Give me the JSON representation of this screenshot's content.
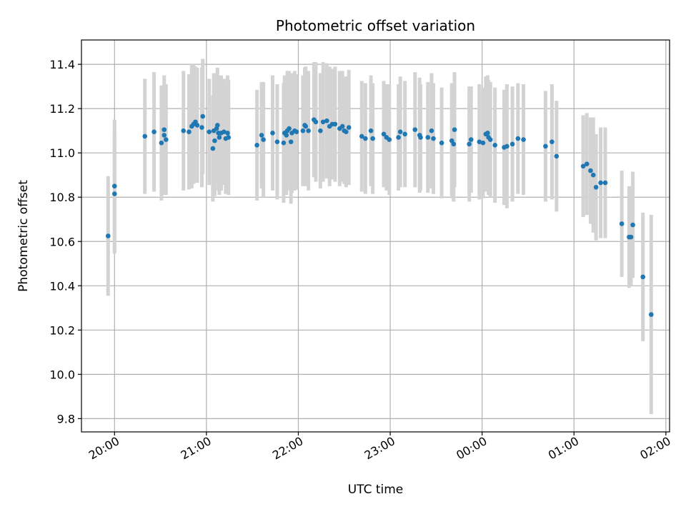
{
  "chart_data": {
    "type": "scatter",
    "title": "Photometric offset variation",
    "xlabel": "UTC time",
    "ylabel": "Photometric offset",
    "x_unit": "hours from 20:00 UTC",
    "xlim": [
      -0.36,
      6.04
    ],
    "ylim": [
      9.74,
      11.51
    ],
    "yticks": [
      9.8,
      10.0,
      10.2,
      10.4,
      10.6,
      10.8,
      11.0,
      11.2,
      11.4
    ],
    "ytick_labels": [
      "9.8",
      "10.0",
      "10.2",
      "10.4",
      "10.6",
      "10.8",
      "11.0",
      "11.2",
      "11.4"
    ],
    "xticks": [
      0,
      1,
      2,
      3,
      4,
      5,
      6
    ],
    "xtick_labels": [
      "20:00",
      "21:00",
      "22:00",
      "23:00",
      "00:00",
      "01:00",
      "02:00"
    ],
    "grid": true,
    "errorbar_color": "#d3d3d3",
    "point_color": "#1f77b4",
    "points": [
      [
        -0.07,
        10.625,
        0.27
      ],
      [
        0.0,
        10.815,
        0.27
      ],
      [
        0.0,
        10.85,
        0.3
      ],
      [
        0.33,
        11.075,
        0.26
      ],
      [
        0.43,
        11.095,
        0.27
      ],
      [
        0.51,
        11.045,
        0.26
      ],
      [
        0.54,
        11.08,
        0.27
      ],
      [
        0.54,
        11.105,
        0.2
      ],
      [
        0.56,
        11.06,
        0.25
      ],
      [
        0.75,
        11.1,
        0.27
      ],
      [
        0.81,
        11.095,
        0.26
      ],
      [
        0.84,
        11.12,
        0.28
      ],
      [
        0.86,
        11.13,
        0.27
      ],
      [
        0.88,
        11.14,
        0.25
      ],
      [
        0.9,
        11.125,
        0.26
      ],
      [
        0.95,
        11.115,
        0.27
      ],
      [
        0.96,
        11.165,
        0.26
      ],
      [
        1.03,
        11.095,
        0.24
      ],
      [
        1.07,
        11.02,
        0.24
      ],
      [
        1.08,
        11.1,
        0.26
      ],
      [
        1.09,
        11.055,
        0.25
      ],
      [
        1.11,
        11.11,
        0.25
      ],
      [
        1.12,
        11.125,
        0.26
      ],
      [
        1.13,
        11.09,
        0.26
      ],
      [
        1.14,
        11.07,
        0.26
      ],
      [
        1.16,
        11.09,
        0.26
      ],
      [
        1.19,
        11.095,
        0.24
      ],
      [
        1.21,
        11.065,
        0.25
      ],
      [
        1.23,
        11.09,
        0.26
      ],
      [
        1.24,
        11.07,
        0.26
      ],
      [
        1.55,
        11.035,
        0.25
      ],
      [
        1.6,
        11.08,
        0.24
      ],
      [
        1.62,
        11.06,
        0.26
      ],
      [
        1.72,
        11.09,
        0.26
      ],
      [
        1.77,
        11.05,
        0.26
      ],
      [
        1.84,
        11.045,
        0.27
      ],
      [
        1.85,
        11.09,
        0.26
      ],
      [
        1.87,
        11.08,
        0.27
      ],
      [
        1.88,
        11.1,
        0.27
      ],
      [
        1.9,
        11.11,
        0.26
      ],
      [
        1.92,
        11.05,
        0.28
      ],
      [
        1.93,
        11.09,
        0.27
      ],
      [
        1.96,
        11.1,
        0.27
      ],
      [
        1.98,
        11.095,
        0.26
      ],
      [
        2.05,
        11.1,
        0.25
      ],
      [
        2.07,
        11.125,
        0.26
      ],
      [
        2.08,
        11.12,
        0.27
      ],
      [
        2.11,
        11.1,
        0.27
      ],
      [
        2.17,
        11.15,
        0.26
      ],
      [
        2.19,
        11.14,
        0.27
      ],
      [
        2.24,
        11.1,
        0.26
      ],
      [
        2.27,
        11.14,
        0.27
      ],
      [
        2.31,
        11.145,
        0.26
      ],
      [
        2.34,
        11.12,
        0.27
      ],
      [
        2.37,
        11.13,
        0.25
      ],
      [
        2.4,
        11.13,
        0.26
      ],
      [
        2.45,
        11.11,
        0.26
      ],
      [
        2.48,
        11.12,
        0.25
      ],
      [
        2.5,
        11.1,
        0.24
      ],
      [
        2.52,
        11.095,
        0.25
      ],
      [
        2.55,
        11.115,
        0.26
      ],
      [
        2.69,
        11.075,
        0.25
      ],
      [
        2.73,
        11.065,
        0.25
      ],
      [
        2.79,
        11.1,
        0.25
      ],
      [
        2.81,
        11.065,
        0.25
      ],
      [
        2.93,
        11.085,
        0.24
      ],
      [
        2.96,
        11.07,
        0.24
      ],
      [
        2.99,
        11.06,
        0.25
      ],
      [
        3.09,
        11.07,
        0.24
      ],
      [
        3.11,
        11.095,
        0.25
      ],
      [
        3.16,
        11.085,
        0.24
      ],
      [
        3.27,
        11.105,
        0.26
      ],
      [
        3.32,
        11.08,
        0.26
      ],
      [
        3.33,
        11.07,
        0.24
      ],
      [
        3.41,
        11.07,
        0.25
      ],
      [
        3.45,
        11.1,
        0.26
      ],
      [
        3.47,
        11.065,
        0.25
      ],
      [
        3.56,
        11.045,
        0.25
      ],
      [
        3.67,
        11.055,
        0.26
      ],
      [
        3.69,
        11.04,
        0.26
      ],
      [
        3.7,
        11.105,
        0.26
      ],
      [
        3.86,
        11.04,
        0.26
      ],
      [
        3.88,
        11.06,
        0.24
      ],
      [
        3.97,
        11.05,
        0.26
      ],
      [
        4.01,
        11.045,
        0.25
      ],
      [
        4.04,
        11.085,
        0.26
      ],
      [
        4.06,
        11.09,
        0.26
      ],
      [
        4.07,
        11.07,
        0.26
      ],
      [
        4.09,
        11.06,
        0.26
      ],
      [
        4.14,
        11.035,
        0.26
      ],
      [
        4.24,
        11.025,
        0.26
      ],
      [
        4.27,
        11.03,
        0.28
      ],
      [
        4.33,
        11.04,
        0.26
      ],
      [
        4.39,
        11.065,
        0.25
      ],
      [
        4.45,
        11.06,
        0.25
      ],
      [
        4.69,
        11.03,
        0.25
      ],
      [
        4.76,
        11.05,
        0.26
      ],
      [
        4.81,
        10.985,
        0.25
      ],
      [
        5.1,
        10.94,
        0.23
      ],
      [
        5.14,
        10.95,
        0.23
      ],
      [
        5.18,
        10.92,
        0.24
      ],
      [
        5.21,
        10.9,
        0.26
      ],
      [
        5.24,
        10.845,
        0.24
      ],
      [
        5.29,
        10.865,
        0.25
      ],
      [
        5.34,
        10.865,
        0.25
      ],
      [
        5.52,
        10.68,
        0.24
      ],
      [
        5.6,
        10.62,
        0.23
      ],
      [
        5.62,
        10.62,
        0.22
      ],
      [
        5.64,
        10.675,
        0.24
      ],
      [
        5.75,
        10.44,
        0.29
      ],
      [
        5.84,
        10.27,
        0.45
      ]
    ]
  }
}
